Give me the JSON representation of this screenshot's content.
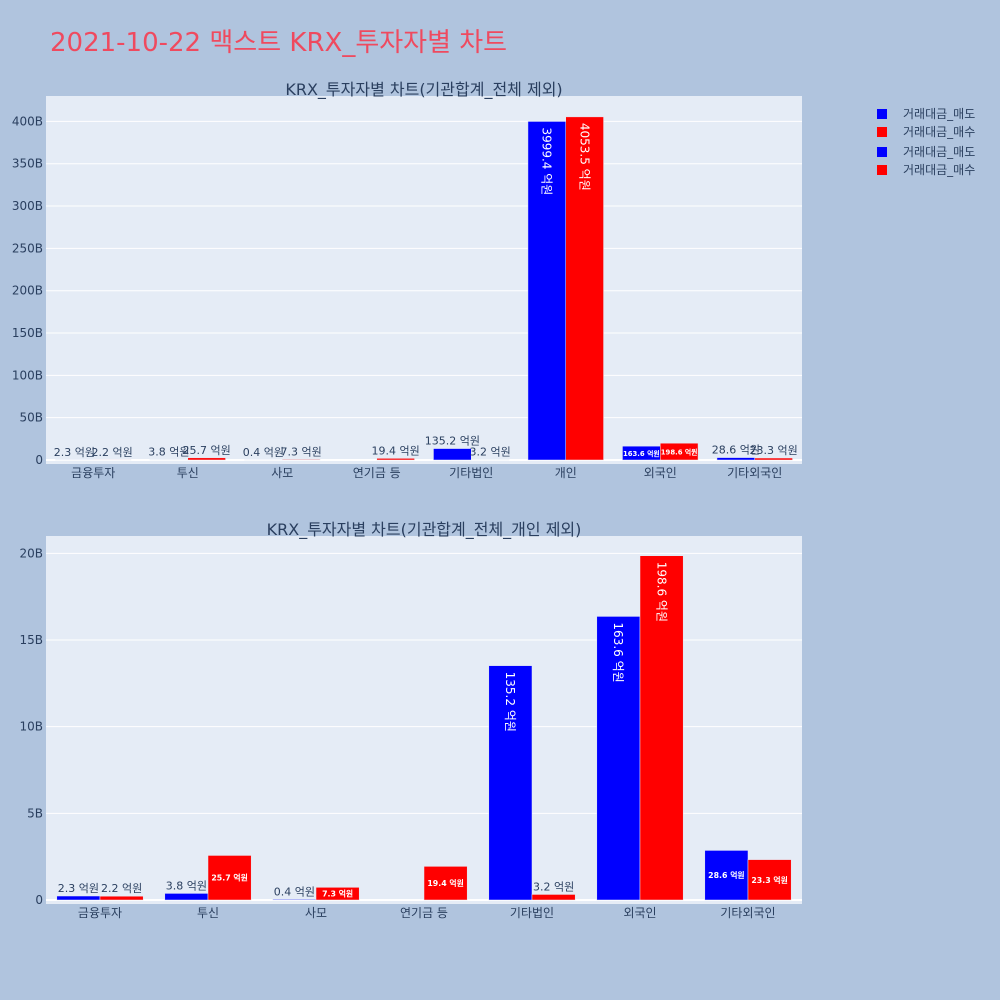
{
  "page_title": "2021-10-22 맥스트 KRX_투자자별 차트",
  "legend": [
    {
      "label": "거래대금_매도",
      "color": "#0000ff"
    },
    {
      "label": "거래대금_매수",
      "color": "#ff0000"
    },
    {
      "label": "거래대금_매도",
      "color": "#0000ff"
    },
    {
      "label": "거래대금_매수",
      "color": "#ff0000"
    }
  ],
  "chart_data": [
    {
      "type": "bar",
      "title": "KRX_투자자별 차트(기관합계_전체 제외)",
      "categories": [
        "금융투자",
        "투신",
        "사모",
        "연기금 등",
        "기타법인",
        "개인",
        "외국인",
        "기타외국인"
      ],
      "ylim": [
        0,
        430
      ],
      "yticks": [
        0,
        50,
        100,
        150,
        200,
        250,
        300,
        350,
        400
      ],
      "ytick_labels": [
        "0",
        "50B",
        "100B",
        "150B",
        "200B",
        "250B",
        "300B",
        "350B",
        "400B"
      ],
      "grid": true,
      "series": [
        {
          "name": "거래대금_매도",
          "color": "#0000ff",
          "values": [
            0.23,
            0.38,
            0.04,
            0,
            13.52,
            399.94,
            16.36,
            2.86
          ],
          "labels": [
            "2.3 억원",
            "3.8 억원",
            "0.4 억원",
            "",
            "135.2 억원",
            "3999.4 억원",
            "163.6 억원",
            "28.6 억원"
          ]
        },
        {
          "name": "거래대금_매수",
          "color": "#ff0000",
          "values": [
            0.22,
            2.57,
            0.73,
            1.94,
            0.32,
            405.35,
            19.86,
            2.33
          ],
          "labels": [
            "2.2 억원",
            "25.7 억원",
            "7.3 억원",
            "19.4 억원",
            "3.2 억원",
            "4053.5 억원",
            "198.6 억원",
            "23.3 억원"
          ]
        }
      ]
    },
    {
      "type": "bar",
      "title": "KRX_투자자별 차트(기관합계_전체_개인 제외)",
      "categories": [
        "금융투자",
        "투신",
        "사모",
        "연기금 등",
        "기타법인",
        "외국인",
        "기타외국인"
      ],
      "ylim": [
        0,
        21
      ],
      "yticks": [
        0,
        5,
        10,
        15,
        20
      ],
      "ytick_labels": [
        "0",
        "5B",
        "10B",
        "15B",
        "20B"
      ],
      "grid": true,
      "series": [
        {
          "name": "거래대금_매도",
          "color": "#0000ff",
          "values": [
            0.23,
            0.38,
            0.04,
            0,
            13.52,
            16.36,
            2.86
          ],
          "labels": [
            "2.3 억원",
            "3.8 억원",
            "0.4 억원",
            "",
            "135.2 억원",
            "163.6 억원",
            "28.6 억원"
          ]
        },
        {
          "name": "거래대금_매수",
          "color": "#ff0000",
          "values": [
            0.22,
            2.57,
            0.73,
            1.94,
            0.32,
            19.86,
            2.33
          ],
          "labels": [
            "2.2 억원",
            "25.7 억원",
            "7.3 억원",
            "19.4 억원",
            "3.2 억원",
            "198.6 억원",
            "23.3 억원"
          ]
        }
      ]
    }
  ]
}
